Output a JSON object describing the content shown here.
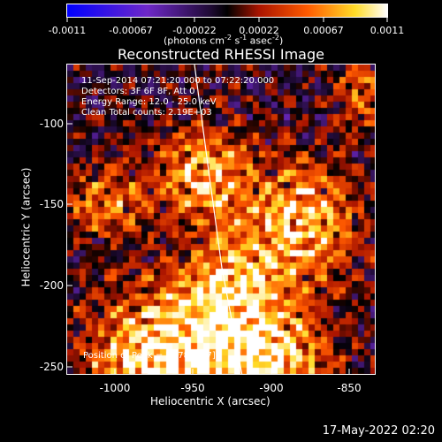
{
  "colorbar": {
    "ticks": [
      "-0.0011",
      "-0.00067",
      "-0.00022",
      "0.00022",
      "0.00067",
      "0.0011"
    ],
    "units_text": "(photons cm",
    "units_exp1": "-2",
    "units_mid1": " s",
    "units_exp2": "-1",
    "units_mid2": " asec",
    "units_exp3": "-2",
    "units_end": ")"
  },
  "title": "Reconstructed RHESSI Image",
  "info": {
    "line1": "11-Sep-2014 07:21:20.000 to 07:22:20.000",
    "line2": "Detectors: 3F 6F 8F, Att 0",
    "line3": "Energy Range: 12.0 - 25.0 keV",
    "line4": "Clean     Total counts: 2.19E+03",
    "peak": "Position of Peak = [-978,-237]"
  },
  "axes": {
    "x_ticks": [
      "-1000",
      "-950",
      "-900",
      "-850"
    ],
    "y_ticks": [
      "-100",
      "-150",
      "-200",
      "-250"
    ],
    "xlabel": "Heliocentric X (arcsec)",
    "ylabel": "Heliocentric Y (arcsec)"
  },
  "footer": "17-May-2022 02:20"
}
